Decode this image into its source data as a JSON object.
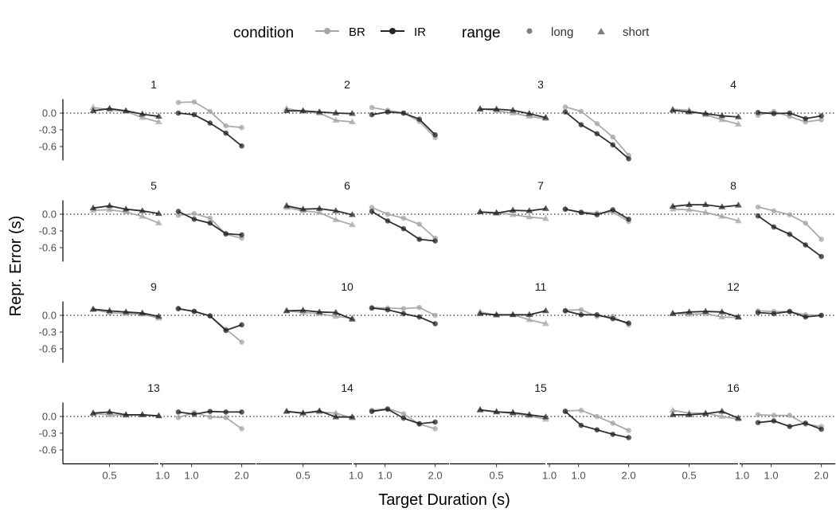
{
  "legend": {
    "condition_title": "condition",
    "range_title": "range",
    "conditions": [
      {
        "name": "BR",
        "color": "#a6a6a6"
      },
      {
        "name": "IR",
        "color": "#262626"
      }
    ],
    "ranges": [
      {
        "name": "long",
        "shape": "circle"
      },
      {
        "name": "short",
        "shape": "triangle"
      }
    ]
  },
  "chart_data": {
    "type": "line",
    "facets": "16 panels (4x4), one per participant",
    "xlabel": "Target Duration (s)",
    "ylabel": "Repr. Error (s)",
    "ylim": [
      -0.85,
      0.25
    ],
    "y_ticks": [
      0.0,
      -0.3,
      -0.6
    ],
    "y_tick_labels": [
      "0.0",
      "-0.3",
      "-0.6"
    ],
    "x_ticks_short": [
      0.5,
      1.0
    ],
    "x_ticks_long": [
      1.0,
      2.0
    ],
    "x_tick_labels": [
      "0.5",
      "1.0",
      "2.0"
    ],
    "short_range_x": [
      0.4,
      0.5,
      0.6,
      0.7,
      0.8
    ],
    "long_range_x": [
      1.2,
      1.4,
      1.6,
      1.8,
      2.0
    ],
    "reference_line": 0,
    "grid": false,
    "legend_position": "top",
    "panels": [
      {
        "label": "1",
        "short": {
          "BR": [
            0.1,
            0.06,
            0.03,
            -0.08,
            -0.16
          ],
          "IR": [
            0.04,
            0.08,
            0.04,
            -0.02,
            -0.06
          ]
        },
        "long": {
          "BR": [
            0.19,
            0.2,
            0.03,
            -0.23,
            -0.26
          ],
          "IR": [
            0.0,
            -0.03,
            -0.18,
            -0.36,
            -0.59
          ]
        }
      },
      {
        "label": "2",
        "short": {
          "BR": [
            0.08,
            0.03,
            0.0,
            -0.13,
            -0.16
          ],
          "IR": [
            0.04,
            0.04,
            0.02,
            0.0,
            -0.01
          ]
        },
        "long": {
          "BR": [
            0.1,
            0.05,
            0.0,
            -0.15,
            -0.44
          ],
          "IR": [
            -0.03,
            0.02,
            0.0,
            -0.11,
            -0.39
          ]
        }
      },
      {
        "label": "3",
        "short": {
          "BR": [
            0.08,
            0.04,
            0.0,
            -0.06,
            -0.1
          ],
          "IR": [
            0.07,
            0.07,
            0.05,
            -0.01,
            -0.08
          ]
        },
        "long": {
          "BR": [
            0.11,
            0.03,
            -0.19,
            -0.43,
            -0.76
          ],
          "IR": [
            0.02,
            -0.21,
            -0.37,
            -0.57,
            -0.82
          ]
        }
      },
      {
        "label": "4",
        "short": {
          "BR": [
            0.07,
            0.05,
            -0.03,
            -0.12,
            -0.2
          ],
          "IR": [
            0.05,
            0.02,
            -0.01,
            -0.05,
            -0.07
          ]
        },
        "long": {
          "BR": [
            -0.04,
            0.03,
            -0.06,
            -0.16,
            -0.12
          ],
          "IR": [
            0.01,
            -0.01,
            0.0,
            -0.1,
            -0.05
          ]
        }
      },
      {
        "label": "5",
        "short": {
          "BR": [
            0.07,
            0.08,
            0.04,
            -0.04,
            -0.16
          ],
          "IR": [
            0.11,
            0.15,
            0.09,
            0.06,
            0.01
          ]
        },
        "long": {
          "BR": [
            -0.02,
            0.01,
            -0.07,
            -0.36,
            -0.43
          ],
          "IR": [
            0.05,
            -0.09,
            -0.16,
            -0.35,
            -0.37
          ]
        }
      },
      {
        "label": "6",
        "short": {
          "BR": [
            0.12,
            0.06,
            0.03,
            -0.1,
            -0.19
          ],
          "IR": [
            0.15,
            0.09,
            0.1,
            0.06,
            -0.01
          ]
        },
        "long": {
          "BR": [
            0.12,
            0.0,
            -0.07,
            -0.18,
            -0.43
          ],
          "IR": [
            0.05,
            -0.12,
            -0.26,
            -0.45,
            -0.48
          ]
        }
      },
      {
        "label": "7",
        "short": {
          "BR": [
            0.04,
            0.03,
            -0.01,
            -0.05,
            -0.08
          ],
          "IR": [
            0.04,
            0.02,
            0.07,
            0.06,
            0.1
          ]
        },
        "long": {
          "BR": [
            0.09,
            0.04,
            0.02,
            0.04,
            -0.13
          ],
          "IR": [
            0.09,
            0.03,
            -0.01,
            0.08,
            -0.09
          ]
        }
      },
      {
        "label": "8",
        "short": {
          "BR": [
            0.09,
            0.08,
            0.03,
            -0.04,
            -0.12
          ],
          "IR": [
            0.14,
            0.17,
            0.17,
            0.13,
            0.16
          ]
        },
        "long": {
          "BR": [
            0.13,
            0.06,
            -0.01,
            -0.16,
            -0.45
          ],
          "IR": [
            -0.03,
            -0.23,
            -0.36,
            -0.55,
            -0.76
          ]
        }
      },
      {
        "label": "9",
        "short": {
          "BR": [
            0.1,
            0.05,
            0.03,
            0.02,
            -0.05
          ],
          "IR": [
            0.11,
            0.08,
            0.06,
            0.04,
            -0.02
          ]
        },
        "long": {
          "BR": [
            0.12,
            0.07,
            -0.01,
            -0.25,
            -0.48
          ],
          "IR": [
            0.12,
            0.07,
            -0.01,
            -0.27,
            -0.17
          ]
        }
      },
      {
        "label": "10",
        "short": {
          "BR": [
            0.08,
            0.05,
            0.03,
            -0.02,
            -0.05
          ],
          "IR": [
            0.08,
            0.09,
            0.06,
            0.05,
            -0.07
          ]
        },
        "long": {
          "BR": [
            0.14,
            0.13,
            0.12,
            0.14,
            0.0
          ],
          "IR": [
            0.13,
            0.1,
            0.03,
            -0.03,
            -0.15
          ]
        }
      },
      {
        "label": "11",
        "short": {
          "BR": [
            0.06,
            0.0,
            0.01,
            -0.08,
            -0.15
          ],
          "IR": [
            0.03,
            0.01,
            0.01,
            0.01,
            0.08
          ]
        },
        "long": {
          "BR": [
            0.09,
            0.1,
            -0.02,
            -0.02,
            -0.17
          ],
          "IR": [
            0.08,
            0.01,
            0.01,
            -0.06,
            -0.14
          ]
        }
      },
      {
        "label": "12",
        "short": {
          "BR": [
            0.04,
            0.02,
            0.03,
            -0.03,
            -0.04
          ],
          "IR": [
            0.03,
            0.06,
            0.07,
            0.06,
            -0.03
          ]
        },
        "long": {
          "BR": [
            0.08,
            0.07,
            0.06,
            0.01,
            0.0
          ],
          "IR": [
            0.05,
            0.03,
            0.07,
            -0.03,
            0.0
          ]
        }
      },
      {
        "label": "13",
        "short": {
          "BR": [
            0.05,
            0.03,
            0.02,
            0.03,
            0.01
          ],
          "IR": [
            0.06,
            0.08,
            0.03,
            0.03,
            0.01
          ]
        },
        "long": {
          "BR": [
            -0.02,
            0.07,
            -0.01,
            -0.02,
            -0.22
          ],
          "IR": [
            0.08,
            0.04,
            0.09,
            0.08,
            0.08
          ]
        }
      },
      {
        "label": "14",
        "short": {
          "BR": [
            0.09,
            0.06,
            0.08,
            0.06,
            -0.03
          ],
          "IR": [
            0.09,
            0.06,
            0.1,
            -0.01,
            -0.01
          ]
        },
        "long": {
          "BR": [
            0.11,
            0.14,
            0.05,
            -0.14,
            -0.22
          ],
          "IR": [
            0.09,
            0.13,
            -0.03,
            -0.13,
            -0.1
          ]
        }
      },
      {
        "label": "15",
        "short": {
          "BR": [
            0.11,
            0.09,
            0.05,
            0.01,
            -0.05
          ],
          "IR": [
            0.12,
            0.08,
            0.07,
            0.03,
            -0.01
          ]
        },
        "long": {
          "BR": [
            0.1,
            0.11,
            0.0,
            -0.12,
            -0.25
          ],
          "IR": [
            0.09,
            -0.16,
            -0.24,
            -0.32,
            -0.38
          ]
        }
      },
      {
        "label": "16",
        "short": {
          "BR": [
            0.11,
            0.06,
            0.06,
            0.0,
            -0.05
          ],
          "IR": [
            0.03,
            0.03,
            0.05,
            0.09,
            -0.03
          ]
        },
        "long": {
          "BR": [
            0.03,
            0.02,
            0.02,
            -0.14,
            -0.18
          ],
          "IR": [
            -0.11,
            -0.08,
            -0.18,
            -0.12,
            -0.23
          ]
        }
      }
    ]
  }
}
